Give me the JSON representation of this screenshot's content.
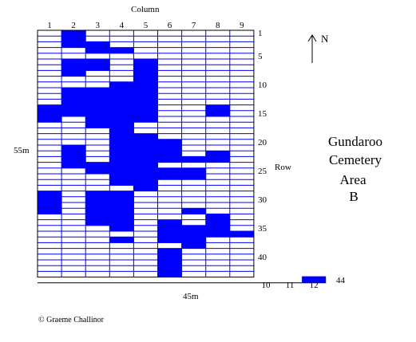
{
  "title": {
    "column_label": "Column",
    "row_label": "Row",
    "site_name_lines": [
      "Gundaroo",
      "Cemetery",
      "Area",
      "B"
    ]
  },
  "dimensions": {
    "height_label": "55m",
    "width_label": "45m"
  },
  "columns": [
    "1",
    "2",
    "3",
    "4",
    "5",
    "6",
    "7",
    "8",
    "9"
  ],
  "extra_columns": [
    "10",
    "11",
    "12"
  ],
  "row_labels": [
    "1",
    "5",
    "10",
    "15",
    "20",
    "25",
    "30",
    "35",
    "40",
    "44"
  ],
  "compass": {
    "label": "N"
  },
  "credit": "© Graeme Challinor",
  "colors": {
    "plot": "#0000ff",
    "grid": "#0000ff",
    "border": "#000000",
    "background": "#ffffff"
  },
  "rows_per_column": 43,
  "filled_plots": [
    {
      "col": 2,
      "rows": [
        1,
        2,
        3,
        6,
        7,
        8,
        11,
        12,
        13,
        14,
        15,
        21,
        22,
        23,
        24
      ]
    },
    {
      "col": 3,
      "rows": [
        3,
        4,
        6,
        7,
        11,
        12,
        13,
        14,
        15,
        16,
        17,
        24,
        25,
        29,
        30,
        31,
        32,
        33,
        34
      ]
    },
    {
      "col": 4,
      "rows": [
        4,
        10,
        11,
        12,
        13,
        14,
        15,
        16,
        17,
        18,
        19,
        20,
        21,
        22,
        23,
        24,
        25,
        26,
        27,
        29,
        30,
        31,
        32,
        33,
        34,
        35,
        37
      ]
    },
    {
      "col": 5,
      "rows": [
        6,
        7,
        8,
        9,
        10,
        11,
        12,
        13,
        14,
        15,
        16,
        19,
        20,
        21,
        22,
        23,
        24,
        25,
        26,
        27,
        28
      ]
    },
    {
      "col": 6,
      "rows": [
        20,
        21,
        22,
        23,
        25,
        26,
        34,
        35,
        36,
        37,
        39,
        40,
        41,
        42,
        43
      ]
    },
    {
      "col": 7,
      "rows": [
        23,
        25,
        26,
        32,
        35,
        36,
        37,
        38
      ]
    },
    {
      "col": 8,
      "rows": [
        14,
        15,
        22,
        23,
        33,
        34,
        35,
        36
      ]
    },
    {
      "col": 9,
      "rows": [
        36
      ]
    },
    {
      "col": 1,
      "rows": [
        14,
        15,
        16,
        29,
        30,
        31,
        32
      ]
    }
  ],
  "extra_row_fill": {
    "row": 44,
    "cols": [
      12
    ]
  }
}
